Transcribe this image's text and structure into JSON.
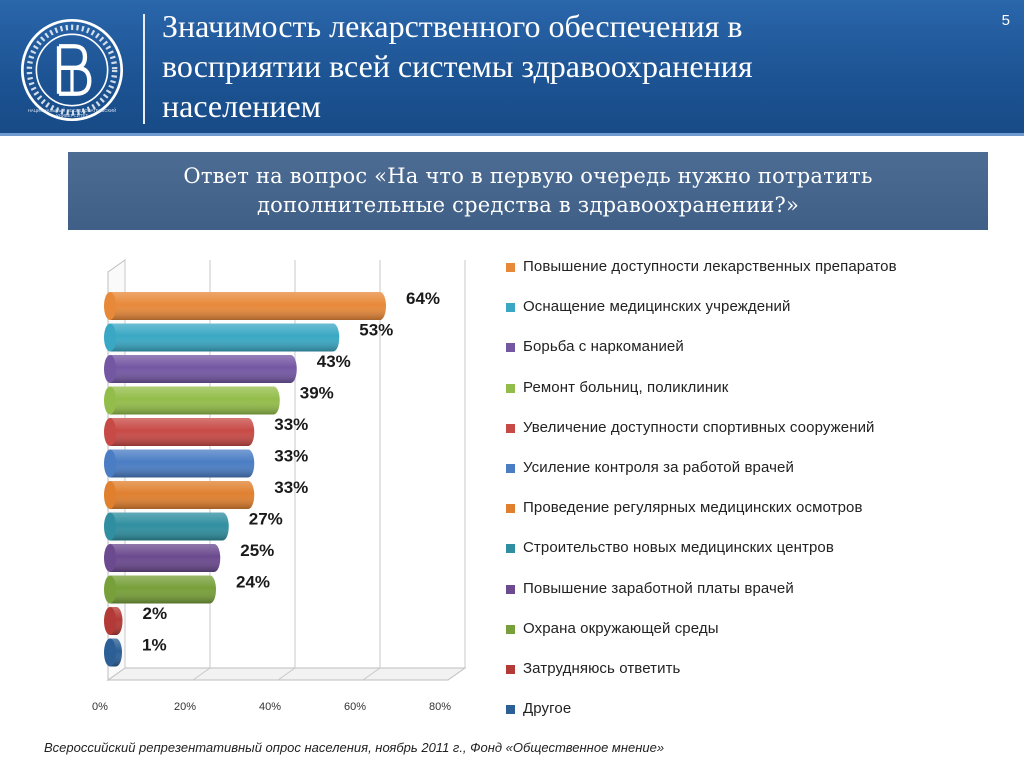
{
  "header": {
    "title_line1": "Значимость лекарственного обеспечения в",
    "title_line2": "восприятии всей системы здравоохранения",
    "title_line3": "населением",
    "slide_number": "5",
    "logo_caption_line1": "НАЦИОНАЛЬНЫЙ ИССЛЕДОВАТЕЛЬСКИЙ",
    "logo_caption_line2": "УНИВЕРСИТЕТ"
  },
  "subtitle": {
    "line1": "Ответ на вопрос «На что в первую очередь нужно потратить",
    "line2": "дополнительные средства в здравоохранении?»"
  },
  "chart_data": {
    "type": "bar",
    "orientation": "horizontal",
    "categories": [
      "Повышение доступности лекарственных препаратов",
      "Оснащение медицинских учреждений",
      "Борьба с наркоманией",
      "Ремонт больниц, поликлиник",
      "Увеличение доступности спортивных сооружений",
      "Усиление контроля за работой врачей",
      "Проведение регулярных медицинских осмотров",
      "Строительство новых медицинских центров",
      "Повышение заработной платы врачей",
      "Охрана окружающей среды",
      "Затрудняюсь ответить",
      "Другое"
    ],
    "values": [
      64,
      53,
      43,
      39,
      33,
      33,
      33,
      27,
      25,
      24,
      2,
      1
    ],
    "value_labels": [
      "64%",
      "53%",
      "43%",
      "39%",
      "33%",
      "33%",
      "33%",
      "27%",
      "25%",
      "24%",
      "2%",
      "1%"
    ],
    "colors": [
      "#e8893a",
      "#3aa8c4",
      "#7457a3",
      "#93bd4a",
      "#c84a46",
      "#4a7dc4",
      "#e0802f",
      "#2f8fa0",
      "#6b4a8f",
      "#77a03a",
      "#b33a36",
      "#2d5f97"
    ],
    "x_ticks": [
      "0%",
      "20%",
      "40%",
      "60%",
      "80%"
    ],
    "xlim": [
      0,
      80
    ],
    "grid": true,
    "legend_position": "right"
  },
  "source": "Всероссийский репрезентативный опрос населения, ноябрь 2011 г., Фонд «Общественное мнение»"
}
